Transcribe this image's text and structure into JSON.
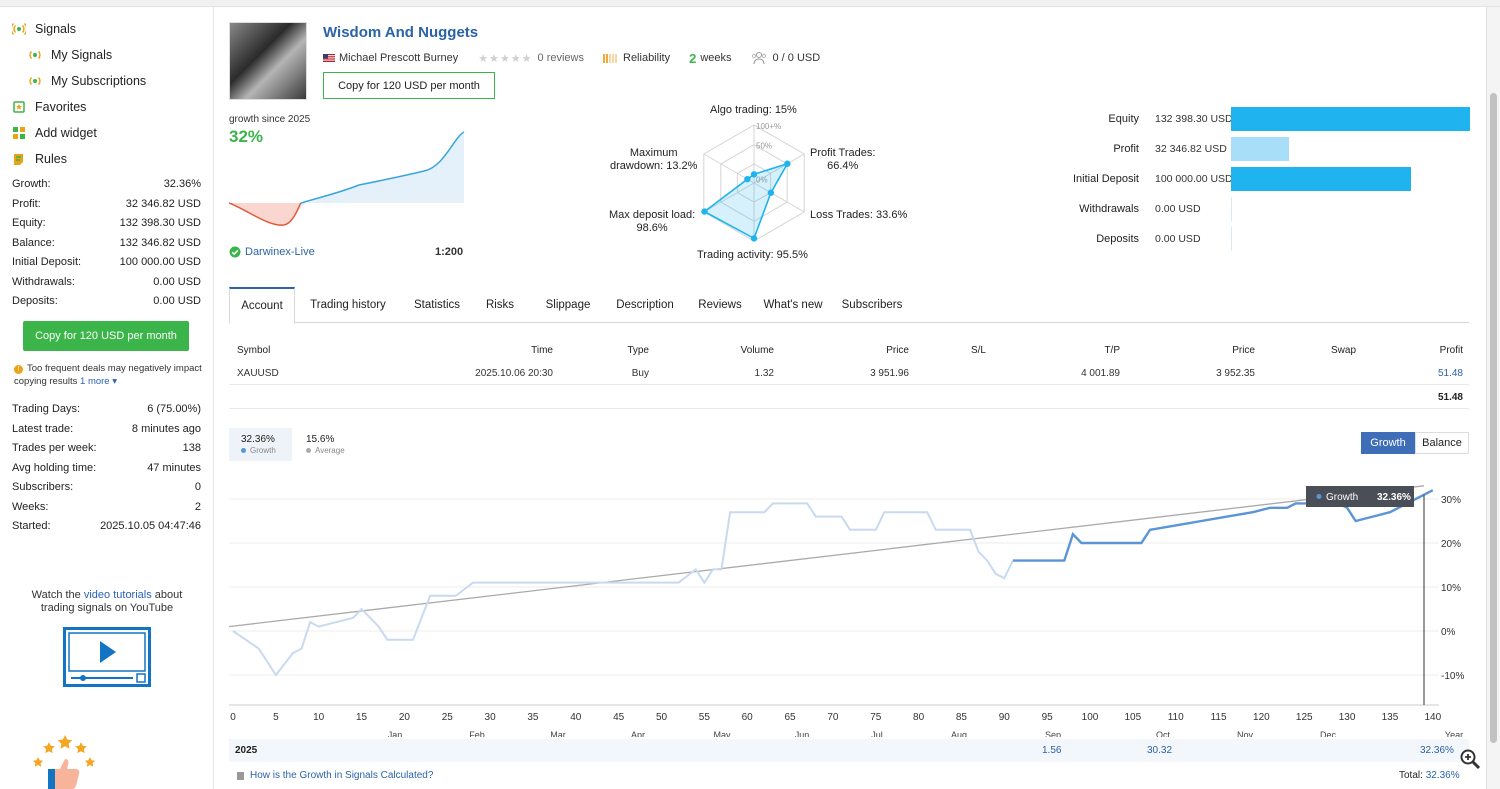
{
  "sidebar": {
    "nav": [
      {
        "label": "Signals",
        "icon": "signal-icon"
      },
      {
        "label": "My Signals",
        "icon": "signal-icon"
      },
      {
        "label": "My Subscriptions",
        "icon": "signal-icon"
      },
      {
        "label": "Favorites",
        "icon": "bookmark-icon"
      },
      {
        "label": "Add widget",
        "icon": "widget-icon"
      },
      {
        "label": "Rules",
        "icon": "rules-icon"
      }
    ],
    "stats": [
      {
        "label": "Growth:",
        "value": "32.36%"
      },
      {
        "label": "Profit:",
        "value": "32 346.82 USD"
      },
      {
        "label": "Equity:",
        "value": "132 398.30 USD"
      },
      {
        "label": "Balance:",
        "value": "132 346.82 USD"
      },
      {
        "label": "Initial Deposit:",
        "value": "100 000.00 USD"
      },
      {
        "label": "Withdrawals:",
        "value": "0.00 USD"
      },
      {
        "label": "Deposits:",
        "value": "0.00 USD"
      }
    ],
    "copy_button": "Copy for 120 USD per month",
    "warning_text": "Too frequent deals may negatively impact copying results",
    "warning_more": "1 more",
    "stats2": [
      {
        "label": "Trading Days:",
        "value": "6 (75.00%)"
      },
      {
        "label": "Latest trade:",
        "value": "8 minutes ago"
      },
      {
        "label": "Trades per week:",
        "value": "138"
      },
      {
        "label": "Avg holding time:",
        "value": "47 minutes"
      },
      {
        "label": "Subscribers:",
        "value": "0"
      },
      {
        "label": "Weeks:",
        "value": "2"
      },
      {
        "label": "Started:",
        "value": "2025.10.05 04:47:46"
      }
    ],
    "tutorial_pre": "Watch the",
    "tutorial_link": "video tutorials",
    "tutorial_post": "about trading signals on YouTube"
  },
  "signal": {
    "title": "Wisdom And Nuggets",
    "author": "Michael Prescott Burney",
    "reviews": "0 reviews",
    "reliability": "Reliability",
    "weeks_num": "2",
    "weeks_label": "weeks",
    "subscribers_funds": "0 / 0 USD",
    "copy_button": "Copy for 120 USD per month",
    "growth_since": "growth since 2025",
    "growth_value": "32%",
    "broker": "Darwinex-Live",
    "leverage": "1:200"
  },
  "radar": {
    "labels": {
      "algo": "Algo trading: 15%",
      "profit_trades_1": "Profit Trades:",
      "profit_trades_2": "66.4%",
      "loss_trades": "Loss Trades: 33.6%",
      "activity": "Trading activity: 95.5%",
      "deposit_load_1": "Max deposit load:",
      "deposit_load_2": "98.6%",
      "drawdown_1": "Maximum",
      "drawdown_2": "drawdown: 13.2%"
    },
    "scale": [
      "100+%",
      "50%",
      "0%"
    ],
    "values": {
      "algo": 15,
      "profit_trades": 66.4,
      "loss_trades": 33.6,
      "activity": 95.5,
      "deposit_load": 98.6,
      "drawdown": 13.2
    }
  },
  "balance_bars": [
    {
      "label": "Equity",
      "value": "132 398.30 USD",
      "fraction": 1.0,
      "color": "#1fb3ef"
    },
    {
      "label": "Profit",
      "value": "32 346.82 USD",
      "fraction": 0.244,
      "color": "#a8def8"
    },
    {
      "label": "Initial Deposit",
      "value": "100 000.00 USD",
      "fraction": 0.755,
      "color": "#1fb3ef"
    },
    {
      "label": "Withdrawals",
      "value": "0.00 USD",
      "fraction": 0,
      "color": "#1fb3ef"
    },
    {
      "label": "Deposits",
      "value": "0.00 USD",
      "fraction": 0,
      "color": "#1fb3ef"
    }
  ],
  "tabs": [
    "Account",
    "Trading history",
    "Statistics",
    "Risks",
    "Slippage",
    "Description",
    "Reviews",
    "What's new",
    "Subscribers"
  ],
  "positions": {
    "headers": [
      "Symbol",
      "Time",
      "Type",
      "Volume",
      "Price",
      "S/L",
      "T/P",
      "Price",
      "Swap",
      "Profit"
    ],
    "rows": [
      [
        "XAUUSD",
        "2025.10.06 20:30",
        "Buy",
        "1.32",
        "3 951.96",
        "",
        "4 001.89",
        "3 952.35",
        "",
        "51.48"
      ]
    ],
    "total": "51.48"
  },
  "growth_chart": {
    "legend_growth_value": "32.36%",
    "legend_growth_label": "Growth",
    "legend_avg_value": "15.6%",
    "legend_avg_label": "Average",
    "toggle_growth": "Growth",
    "toggle_balance": "Balance",
    "tooltip_label": "Growth",
    "tooltip_value": "32.36%",
    "x_ticks": [
      "0",
      "5",
      "10",
      "15",
      "20",
      "25",
      "30",
      "35",
      "40",
      "45",
      "50",
      "55",
      "60",
      "65",
      "70",
      "75",
      "80",
      "85",
      "90",
      "95",
      "100",
      "105",
      "110",
      "115",
      "120",
      "125",
      "130",
      "135",
      "140"
    ],
    "months": [
      "Jan",
      "Feb",
      "Mar",
      "Apr",
      "May",
      "Jun",
      "Jul",
      "Aug",
      "Sep",
      "Oct",
      "Nov",
      "Dec",
      "Year"
    ],
    "y_ticks": [
      "30%",
      "20%",
      "10%",
      "0%",
      "-10%"
    ],
    "year_label": "2025",
    "year_values": {
      "sep": "1.56",
      "oct": "30.32",
      "year": "32.36%"
    },
    "footer_link": "How is the Growth in Signals Calculated?",
    "footer_total_label": "Total:",
    "footer_total_value": "32.36%"
  }
}
